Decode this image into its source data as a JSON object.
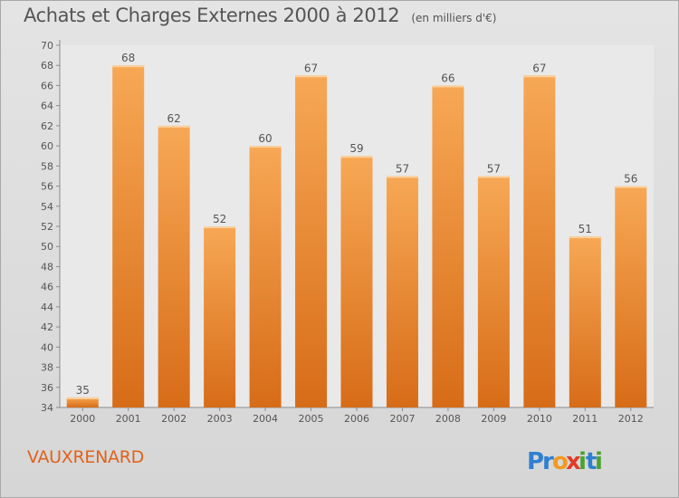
{
  "page": {
    "title": "Achats et Charges Externes 2000 à 2012",
    "subtitle": "(en milliers d'€)",
    "commune": "VAUXRENARD"
  },
  "logo": {
    "letters": [
      {
        "char": "P",
        "color": "#2f7fd1"
      },
      {
        "char": "r",
        "color": "#2f7fd1"
      },
      {
        "char": "o",
        "color": "#f29a1f"
      },
      {
        "char": "x",
        "color": "#e23a2a"
      },
      {
        "char": "i",
        "color": "#4aa331"
      },
      {
        "char": "t",
        "color": "#2f7fd1"
      },
      {
        "char": "i",
        "color": "#4aa331"
      }
    ]
  },
  "chart_data": {
    "type": "bar",
    "title": "Achats et Charges Externes 2000 à 2012",
    "subtitle": "(en milliers d'€)",
    "categories": [
      "2000",
      "2001",
      "2002",
      "2003",
      "2004",
      "2005",
      "2006",
      "2007",
      "2008",
      "2009",
      "2010",
      "2011",
      "2012"
    ],
    "values": [
      35,
      68,
      62,
      52,
      60,
      67,
      59,
      57,
      66,
      57,
      67,
      51,
      56
    ],
    "ylim": [
      34,
      70
    ],
    "yticks": [
      34,
      36,
      38,
      40,
      42,
      44,
      46,
      48,
      50,
      52,
      54,
      56,
      58,
      60,
      62,
      64,
      66,
      68,
      70
    ],
    "xlabel": "",
    "ylabel": "",
    "grid": false,
    "bar_color": "#f08a2c",
    "bar_color_light": "#f7a95a",
    "bar_color_dark": "#d96a16"
  }
}
